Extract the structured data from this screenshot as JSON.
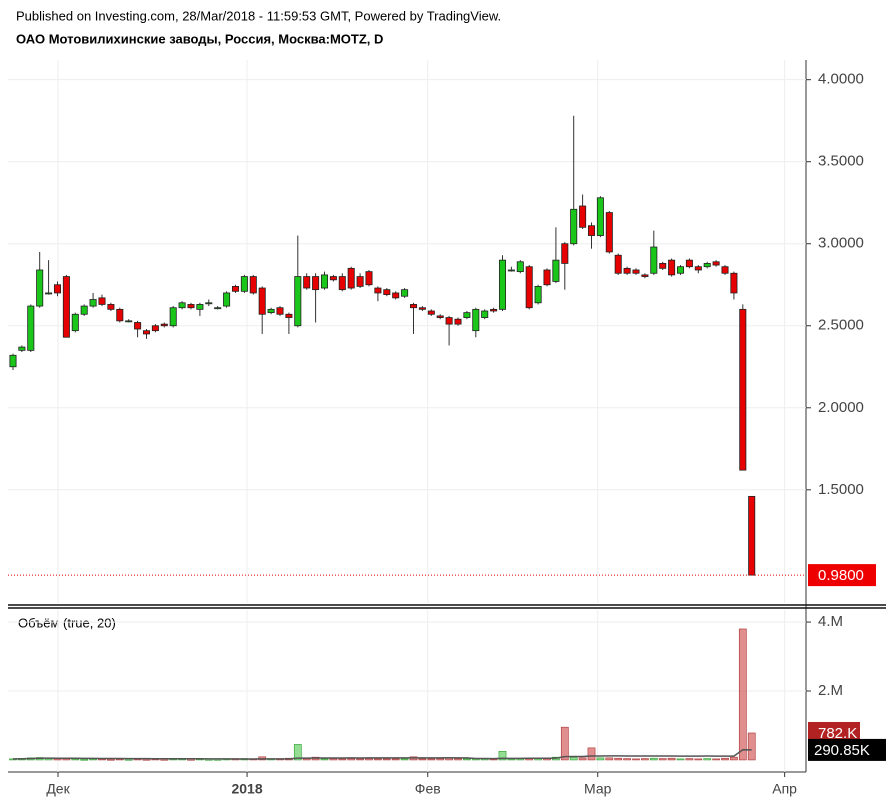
{
  "header": {
    "published": "Published on Investing.com, 28/Mar/2018 - 11:59:53 GMT, Powered by TradingView."
  },
  "chart_data": [
    {
      "type": "candlestick",
      "title": "ОАО Мотовилихинские заводы, Россия, Москва:MOTZ, D",
      "open": [
        2.25,
        2.35,
        2.35,
        2.62,
        2.7,
        2.75,
        2.8,
        2.47,
        2.57,
        2.62,
        2.67,
        2.63,
        2.6,
        2.53,
        2.52,
        2.47,
        2.5,
        2.51,
        2.5,
        2.61,
        2.63,
        2.6,
        2.64,
        2.61,
        2.62,
        2.74,
        2.71,
        2.8,
        2.73,
        2.58,
        2.61,
        2.57,
        2.5,
        2.8,
        2.8,
        2.73,
        2.8,
        2.8,
        2.85,
        2.8,
        2.83,
        2.73,
        2.72,
        2.7,
        2.68,
        2.63,
        2.61,
        2.59,
        2.56,
        2.55,
        2.54,
        2.55,
        2.47,
        2.55,
        2.6,
        2.6,
        2.84,
        2.83,
        2.86,
        2.64,
        2.84,
        2.77,
        3.0,
        3.0,
        3.23,
        3.11,
        3.05,
        3.19,
        2.93,
        2.85,
        2.84,
        2.81,
        2.82,
        2.88,
        2.9,
        2.82,
        2.9,
        2.86,
        2.86,
        2.89,
        2.86,
        2.82,
        2.6,
        1.46
      ],
      "high": [
        2.33,
        2.38,
        2.63,
        2.95,
        2.9,
        2.77,
        2.81,
        2.58,
        2.63,
        2.7,
        2.69,
        2.64,
        2.61,
        2.54,
        2.53,
        2.48,
        2.51,
        2.52,
        2.62,
        2.65,
        2.64,
        2.64,
        2.66,
        2.62,
        2.71,
        2.75,
        2.81,
        2.81,
        2.74,
        2.61,
        2.62,
        2.58,
        3.05,
        2.82,
        2.82,
        2.83,
        2.81,
        2.82,
        2.86,
        2.82,
        2.84,
        2.74,
        2.73,
        2.71,
        2.73,
        2.64,
        2.62,
        2.6,
        2.57,
        2.56,
        2.55,
        2.59,
        2.61,
        2.6,
        2.61,
        2.93,
        2.86,
        2.9,
        2.87,
        2.75,
        2.85,
        3.1,
        3.01,
        3.78,
        3.3,
        3.13,
        3.29,
        3.2,
        2.94,
        2.86,
        2.85,
        2.82,
        3.08,
        2.89,
        2.91,
        2.87,
        2.91,
        2.87,
        2.89,
        2.9,
        2.87,
        2.83,
        2.63,
        1.46
      ],
      "low": [
        2.23,
        2.34,
        2.34,
        2.61,
        2.69,
        2.68,
        2.43,
        2.46,
        2.56,
        2.61,
        2.62,
        2.59,
        2.52,
        2.52,
        2.43,
        2.42,
        2.46,
        2.49,
        2.49,
        2.6,
        2.6,
        2.56,
        2.62,
        2.6,
        2.61,
        2.7,
        2.7,
        2.69,
        2.45,
        2.57,
        2.56,
        2.45,
        2.49,
        2.72,
        2.52,
        2.72,
        2.77,
        2.71,
        2.72,
        2.73,
        2.74,
        2.65,
        2.68,
        2.66,
        2.67,
        2.45,
        2.59,
        2.56,
        2.54,
        2.38,
        2.5,
        2.54,
        2.43,
        2.54,
        2.58,
        2.59,
        2.83,
        2.82,
        2.6,
        2.63,
        2.74,
        2.76,
        2.72,
        2.99,
        3.09,
        2.97,
        3.04,
        2.94,
        2.81,
        2.81,
        2.81,
        2.79,
        2.81,
        2.84,
        2.8,
        2.81,
        2.85,
        2.82,
        2.85,
        2.86,
        2.81,
        2.66,
        1.62,
        0.98
      ],
      "close": [
        2.32,
        2.37,
        2.62,
        2.84,
        2.7,
        2.7,
        2.43,
        2.57,
        2.62,
        2.66,
        2.63,
        2.6,
        2.53,
        2.53,
        2.48,
        2.45,
        2.47,
        2.5,
        2.61,
        2.64,
        2.61,
        2.63,
        2.64,
        2.61,
        2.7,
        2.71,
        2.8,
        2.7,
        2.57,
        2.6,
        2.57,
        2.55,
        2.8,
        2.73,
        2.72,
        2.81,
        2.78,
        2.72,
        2.73,
        2.74,
        2.75,
        2.7,
        2.69,
        2.67,
        2.72,
        2.61,
        2.6,
        2.57,
        2.55,
        2.51,
        2.51,
        2.58,
        2.6,
        2.59,
        2.59,
        2.9,
        2.84,
        2.89,
        2.61,
        2.74,
        2.75,
        2.9,
        2.88,
        3.21,
        3.1,
        3.05,
        3.28,
        2.95,
        2.82,
        2.82,
        2.82,
        2.8,
        2.98,
        2.85,
        2.81,
        2.86,
        2.86,
        2.84,
        2.88,
        2.87,
        2.82,
        2.7,
        1.62,
        0.98
      ],
      "up_color": "#19c619",
      "down_color": "#e60000",
      "xlim": [
        -0.56,
        89.1
      ],
      "ylim": [
        0.81,
        4.12
      ],
      "yticks": [
        {
          "value": 1.5,
          "label": "1.5000"
        },
        {
          "value": 2,
          "label": "2.0000"
        },
        {
          "value": 2.5,
          "label": "2.5000"
        },
        {
          "value": 3,
          "label": "3.0000"
        },
        {
          "value": 3.5,
          "label": "3.5000"
        },
        {
          "value": 4,
          "label": "4.0000"
        }
      ],
      "last_price": {
        "value": 0.98,
        "label": "0.9800"
      },
      "grid": true
    },
    {
      "type": "bar",
      "title": "Объём (true, 20)",
      "values": [
        30000,
        40000,
        60000,
        70000,
        60000,
        40000,
        50000,
        30000,
        20000,
        30000,
        30000,
        20000,
        30000,
        20000,
        30000,
        20000,
        30000,
        20000,
        30000,
        40000,
        20000,
        30000,
        20000,
        20000,
        30000,
        30000,
        40000,
        30000,
        90000,
        30000,
        30000,
        50000,
        450000,
        40000,
        80000,
        30000,
        40000,
        30000,
        40000,
        30000,
        40000,
        30000,
        30000,
        30000,
        30000,
        90000,
        30000,
        30000,
        40000,
        60000,
        40000,
        30000,
        40000,
        40000,
        30000,
        250000,
        30000,
        40000,
        60000,
        40000,
        50000,
        80000,
        950000,
        70000,
        60000,
        350000,
        60000,
        60000,
        50000,
        40000,
        30000,
        40000,
        50000,
        40000,
        50000,
        30000,
        40000,
        30000,
        40000,
        30000,
        50000,
        80000,
        3800000,
        782000
      ],
      "value_labels": [
        null,
        null,
        null,
        null,
        null,
        null,
        null,
        null,
        null,
        null,
        null,
        null,
        null,
        null,
        null,
        null,
        null,
        null,
        null,
        null,
        null,
        null,
        null,
        null,
        null,
        null,
        null,
        null,
        null,
        null,
        null,
        null,
        null,
        null,
        null,
        null,
        null,
        null,
        null,
        null,
        null,
        null,
        null,
        null,
        null,
        null,
        null,
        null,
        null,
        null,
        null,
        null,
        null,
        null,
        null,
        null,
        null,
        null,
        null,
        null,
        null,
        null,
        null,
        null,
        null,
        null,
        null,
        null,
        null,
        null,
        null,
        null,
        null,
        null,
        null,
        null,
        null,
        null,
        null,
        null,
        null,
        null,
        null,
        "782.K"
      ],
      "ma_values": [
        30000,
        35000,
        43000,
        50000,
        52000,
        50000,
        50000,
        48000,
        45000,
        44000,
        43000,
        41000,
        40000,
        39000,
        38000,
        37000,
        36000,
        35000,
        35000,
        35000,
        35000,
        34000,
        32000,
        30000,
        29000,
        29000,
        28000,
        28000,
        31000,
        31000,
        31000,
        32000,
        53000,
        54000,
        56000,
        56000,
        57000,
        57000,
        58000,
        57000,
        58000,
        58000,
        58000,
        58000,
        58000,
        61000,
        61000,
        61000,
        61000,
        62000,
        60000,
        60000,
        40000,
        40000,
        38000,
        48000,
        46000,
        47000,
        48000,
        49000,
        49000,
        51000,
        97000,
        98000,
        100000,
        115000,
        116000,
        118000,
        118000,
        116000,
        115000,
        113000,
        113000,
        113000,
        113000,
        112000,
        112000,
        112000,
        113000,
        111000,
        110000,
        110000,
        295000,
        290850
      ],
      "ma_label": {
        "value": 290850,
        "label": "290.85K"
      },
      "ma_color": "#555555",
      "up_color": "rgba(40,190,40,0.5)",
      "down_color": "rgba(200,50,50,0.55)",
      "xlim": [
        -0.56,
        89.1
      ],
      "ylim": [
        -350000,
        4350000
      ],
      "yticks": [
        {
          "value": 2000000,
          "label": "2.M"
        },
        {
          "value": 4000000,
          "label": "4.M"
        }
      ],
      "xticks": [
        {
          "value": 5.06,
          "label": "Дек"
        },
        {
          "value": 26.3,
          "label": "2018"
        },
        {
          "value": 46.6,
          "label": "Фев"
        },
        {
          "value": 65.7,
          "label": "Мар"
        },
        {
          "value": 86.7,
          "label": "Апр"
        }
      ],
      "grid": true
    }
  ]
}
